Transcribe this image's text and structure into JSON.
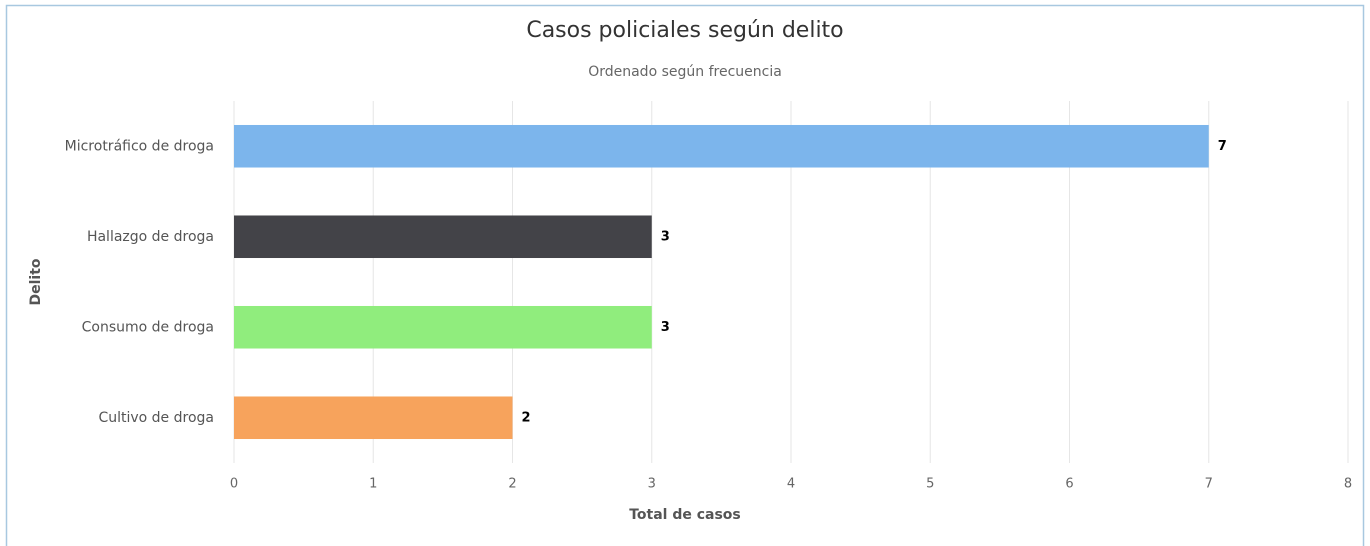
{
  "chart_data": {
    "type": "bar",
    "orientation": "horizontal",
    "title": "Casos policiales según delito",
    "subtitle": "Ordenado según frecuencia",
    "x_label": "Total de casos",
    "y_label": "Delito",
    "categories": [
      "Microtráfico de droga",
      "Hallazgo de droga",
      "Consumo de droga",
      "Cultivo de droga"
    ],
    "values": [
      7,
      3,
      3,
      2
    ],
    "colors": [
      "#7cb5ec",
      "#434348",
      "#90ed7d",
      "#f7a35c"
    ],
    "xlim": [
      0,
      8
    ],
    "xticks": [
      0,
      1,
      2,
      3,
      4,
      5,
      6,
      7,
      8
    ],
    "grid": true
  }
}
